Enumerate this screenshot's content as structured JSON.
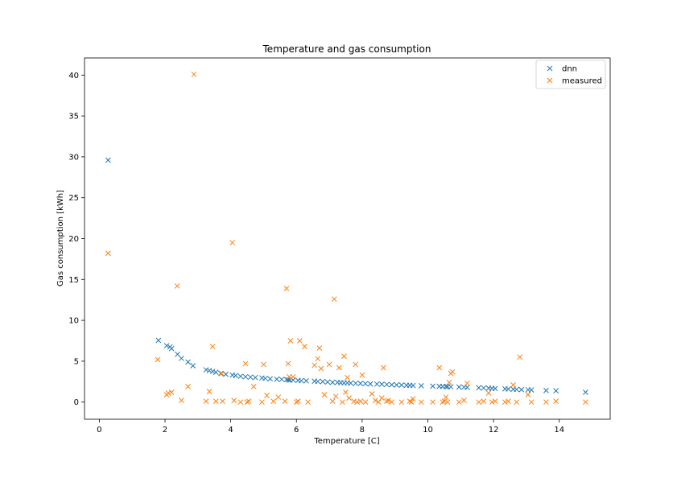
{
  "chart_data": {
    "type": "scatter",
    "title": "Temperature and gas consumption",
    "xlabel": "Temperature [C]",
    "ylabel": "Gas consumption [kWh]",
    "xlim": [
      -0.45,
      15.55
    ],
    "ylim": [
      -2.1,
      42.1
    ],
    "xticks": [
      0,
      2,
      4,
      6,
      8,
      10,
      12,
      14
    ],
    "yticks": [
      0,
      5,
      10,
      15,
      20,
      25,
      30,
      35,
      40
    ],
    "grid": false,
    "legend_position": "top-right",
    "marker": "x",
    "series": [
      {
        "name": "dnn",
        "color": "#1f77b4",
        "points": [
          [
            0.27,
            29.6
          ],
          [
            1.8,
            7.55
          ],
          [
            2.05,
            6.9
          ],
          [
            2.15,
            6.75
          ],
          [
            2.2,
            6.55
          ],
          [
            2.38,
            5.85
          ],
          [
            2.5,
            5.35
          ],
          [
            2.7,
            4.9
          ],
          [
            2.85,
            4.45
          ],
          [
            3.25,
            3.95
          ],
          [
            3.35,
            3.85
          ],
          [
            3.45,
            3.75
          ],
          [
            3.55,
            3.65
          ],
          [
            3.7,
            3.5
          ],
          [
            3.85,
            3.4
          ],
          [
            4.05,
            3.3
          ],
          [
            4.15,
            3.25
          ],
          [
            4.3,
            3.15
          ],
          [
            4.45,
            3.1
          ],
          [
            4.6,
            3.05
          ],
          [
            4.75,
            3.0
          ],
          [
            4.95,
            2.95
          ],
          [
            5.05,
            2.9
          ],
          [
            5.2,
            2.85
          ],
          [
            5.4,
            2.8
          ],
          [
            5.55,
            2.78
          ],
          [
            5.7,
            2.75
          ],
          [
            5.75,
            2.72
          ],
          [
            5.8,
            2.7
          ],
          [
            5.9,
            2.7
          ],
          [
            6.05,
            2.65
          ],
          [
            6.15,
            2.62
          ],
          [
            6.3,
            2.6
          ],
          [
            6.55,
            2.55
          ],
          [
            6.65,
            2.52
          ],
          [
            6.8,
            2.5
          ],
          [
            6.95,
            2.45
          ],
          [
            7.1,
            2.42
          ],
          [
            7.25,
            2.4
          ],
          [
            7.35,
            2.38
          ],
          [
            7.45,
            2.35
          ],
          [
            7.55,
            2.35
          ],
          [
            7.65,
            2.32
          ],
          [
            7.8,
            2.3
          ],
          [
            7.95,
            2.28
          ],
          [
            8.1,
            2.25
          ],
          [
            8.25,
            2.22
          ],
          [
            8.45,
            2.2
          ],
          [
            8.6,
            2.18
          ],
          [
            8.75,
            2.15
          ],
          [
            8.9,
            2.12
          ],
          [
            9.05,
            2.1
          ],
          [
            9.2,
            2.08
          ],
          [
            9.35,
            2.05
          ],
          [
            9.45,
            2.05
          ],
          [
            9.55,
            2.02
          ],
          [
            9.8,
            2.0
          ],
          [
            10.15,
            1.95
          ],
          [
            10.35,
            1.92
          ],
          [
            10.45,
            1.9
          ],
          [
            10.55,
            1.9
          ],
          [
            10.6,
            1.88
          ],
          [
            10.7,
            1.87
          ],
          [
            10.95,
            1.85
          ],
          [
            11.1,
            1.82
          ],
          [
            11.2,
            1.8
          ],
          [
            11.55,
            1.75
          ],
          [
            11.7,
            1.72
          ],
          [
            11.85,
            1.7
          ],
          [
            11.95,
            1.68
          ],
          [
            12.05,
            1.65
          ],
          [
            12.35,
            1.62
          ],
          [
            12.45,
            1.6
          ],
          [
            12.6,
            1.57
          ],
          [
            12.7,
            1.55
          ],
          [
            12.85,
            1.52
          ],
          [
            13.05,
            1.5
          ],
          [
            13.15,
            1.48
          ],
          [
            13.6,
            1.42
          ],
          [
            13.9,
            1.38
          ],
          [
            14.8,
            1.2
          ]
        ]
      },
      {
        "name": "measured",
        "color": "#ff7f0e",
        "points": [
          [
            0.27,
            18.2
          ],
          [
            1.78,
            5.2
          ],
          [
            2.05,
            0.9
          ],
          [
            2.1,
            1.1
          ],
          [
            2.2,
            1.2
          ],
          [
            2.37,
            14.2
          ],
          [
            2.5,
            0.2
          ],
          [
            2.7,
            1.9
          ],
          [
            2.88,
            40.1
          ],
          [
            3.25,
            0.1
          ],
          [
            3.35,
            1.3
          ],
          [
            3.45,
            6.8
          ],
          [
            3.55,
            0.1
          ],
          [
            3.72,
            3.5
          ],
          [
            3.75,
            0.1
          ],
          [
            4.05,
            19.5
          ],
          [
            4.1,
            0.2
          ],
          [
            4.3,
            0.0
          ],
          [
            4.45,
            4.7
          ],
          [
            4.5,
            0.0
          ],
          [
            4.55,
            0.1
          ],
          [
            4.7,
            1.9
          ],
          [
            4.95,
            0.0
          ],
          [
            5.0,
            4.6
          ],
          [
            5.1,
            0.8
          ],
          [
            5.3,
            0.1
          ],
          [
            5.45,
            0.6
          ],
          [
            5.65,
            0.1
          ],
          [
            5.7,
            13.9
          ],
          [
            5.75,
            4.7
          ],
          [
            5.78,
            3.1
          ],
          [
            5.82,
            7.5
          ],
          [
            5.9,
            3.1
          ],
          [
            6.0,
            0.0
          ],
          [
            6.05,
            0.1
          ],
          [
            6.1,
            7.5
          ],
          [
            6.25,
            6.8
          ],
          [
            6.35,
            0.0
          ],
          [
            6.55,
            4.5
          ],
          [
            6.65,
            5.3
          ],
          [
            6.7,
            6.6
          ],
          [
            6.75,
            4.1
          ],
          [
            6.85,
            0.9
          ],
          [
            7.0,
            4.6
          ],
          [
            7.1,
            0.1
          ],
          [
            7.15,
            12.6
          ],
          [
            7.2,
            0.7
          ],
          [
            7.3,
            4.2
          ],
          [
            7.4,
            0.0
          ],
          [
            7.45,
            5.6
          ],
          [
            7.5,
            1.2
          ],
          [
            7.55,
            3.0
          ],
          [
            7.6,
            0.5
          ],
          [
            7.75,
            0.1
          ],
          [
            7.8,
            4.6
          ],
          [
            7.85,
            0.0
          ],
          [
            7.95,
            0.1
          ],
          [
            8.0,
            3.3
          ],
          [
            8.1,
            0.0
          ],
          [
            8.3,
            1.0
          ],
          [
            8.4,
            0.2
          ],
          [
            8.5,
            0.0
          ],
          [
            8.6,
            0.5
          ],
          [
            8.65,
            4.2
          ],
          [
            8.75,
            0.1
          ],
          [
            8.8,
            0.2
          ],
          [
            8.9,
            0.0
          ],
          [
            9.2,
            0.0
          ],
          [
            9.45,
            0.1
          ],
          [
            9.5,
            0.0
          ],
          [
            9.55,
            0.4
          ],
          [
            9.8,
            0.0
          ],
          [
            10.15,
            0.0
          ],
          [
            10.35,
            4.2
          ],
          [
            10.45,
            0.0
          ],
          [
            10.5,
            0.1
          ],
          [
            10.55,
            0.6
          ],
          [
            10.6,
            0.0
          ],
          [
            10.65,
            2.4
          ],
          [
            10.7,
            3.5
          ],
          [
            10.75,
            3.7
          ],
          [
            10.95,
            0.0
          ],
          [
            11.1,
            0.2
          ],
          [
            11.2,
            2.3
          ],
          [
            11.55,
            0.0
          ],
          [
            11.7,
            0.1
          ],
          [
            11.85,
            1.1
          ],
          [
            11.95,
            0.0
          ],
          [
            12.05,
            0.1
          ],
          [
            12.35,
            0.0
          ],
          [
            12.45,
            0.1
          ],
          [
            12.6,
            2.1
          ],
          [
            12.7,
            0.0
          ],
          [
            12.8,
            5.5
          ],
          [
            13.05,
            0.9
          ],
          [
            13.15,
            0.0
          ],
          [
            13.6,
            0.0
          ],
          [
            13.9,
            0.1
          ],
          [
            14.8,
            0.0
          ]
        ]
      }
    ]
  }
}
